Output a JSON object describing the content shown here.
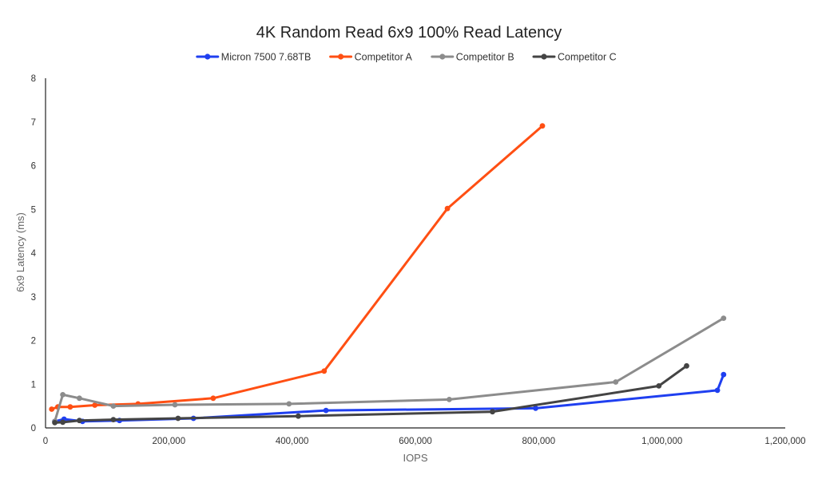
{
  "chart_data": {
    "type": "line",
    "title": "4K Random Read 6x9 100% Read Latency",
    "xlabel": "IOPS",
    "ylabel": "6x9 Latency (ms)",
    "xlim": [
      0,
      1200000
    ],
    "ylim": [
      0,
      8
    ],
    "x_ticks": [
      0,
      200000,
      400000,
      600000,
      800000,
      1000000,
      1200000
    ],
    "x_tick_labels": [
      "0",
      "200,000",
      "400,000",
      "600,000",
      "800,000",
      "1,000,000",
      "1,200,000"
    ],
    "y_ticks": [
      0,
      1,
      2,
      3,
      4,
      5,
      6,
      7,
      8
    ],
    "y_tick_labels": [
      "0",
      "1",
      "2",
      "3",
      "4",
      "5",
      "6",
      "7",
      "8"
    ],
    "legend_position": "top-center",
    "grid": false,
    "series": [
      {
        "name": "Micron 7500 7.68TB",
        "color": "#1f3ff0",
        "points": [
          [
            15000,
            0.15
          ],
          [
            30000,
            0.2
          ],
          [
            60000,
            0.15
          ],
          [
            120000,
            0.17
          ],
          [
            240000,
            0.22
          ],
          [
            455000,
            0.4
          ],
          [
            795000,
            0.45
          ],
          [
            1090000,
            0.86
          ],
          [
            1100000,
            1.22
          ]
        ]
      },
      {
        "name": "Competitor A",
        "color": "#ff4f13",
        "points": [
          [
            10000,
            0.43
          ],
          [
            20000,
            0.48
          ],
          [
            40000,
            0.48
          ],
          [
            80000,
            0.52
          ],
          [
            150000,
            0.55
          ],
          [
            272000,
            0.68
          ],
          [
            452000,
            1.3
          ],
          [
            652000,
            5.02
          ],
          [
            806000,
            6.91
          ]
        ]
      },
      {
        "name": "Competitor B",
        "color": "#8c8c8c",
        "points": [
          [
            15000,
            0.15
          ],
          [
            28000,
            0.76
          ],
          [
            55000,
            0.68
          ],
          [
            110000,
            0.5
          ],
          [
            210000,
            0.53
          ],
          [
            395000,
            0.55
          ],
          [
            655000,
            0.65
          ],
          [
            925000,
            1.05
          ],
          [
            1100000,
            2.51
          ]
        ]
      },
      {
        "name": "Competitor C",
        "color": "#444444",
        "points": [
          [
            15000,
            0.12
          ],
          [
            28000,
            0.13
          ],
          [
            55000,
            0.17
          ],
          [
            110000,
            0.19
          ],
          [
            215000,
            0.22
          ],
          [
            410000,
            0.27
          ],
          [
            725000,
            0.37
          ],
          [
            995000,
            0.96
          ],
          [
            1040000,
            1.42
          ]
        ]
      }
    ]
  }
}
